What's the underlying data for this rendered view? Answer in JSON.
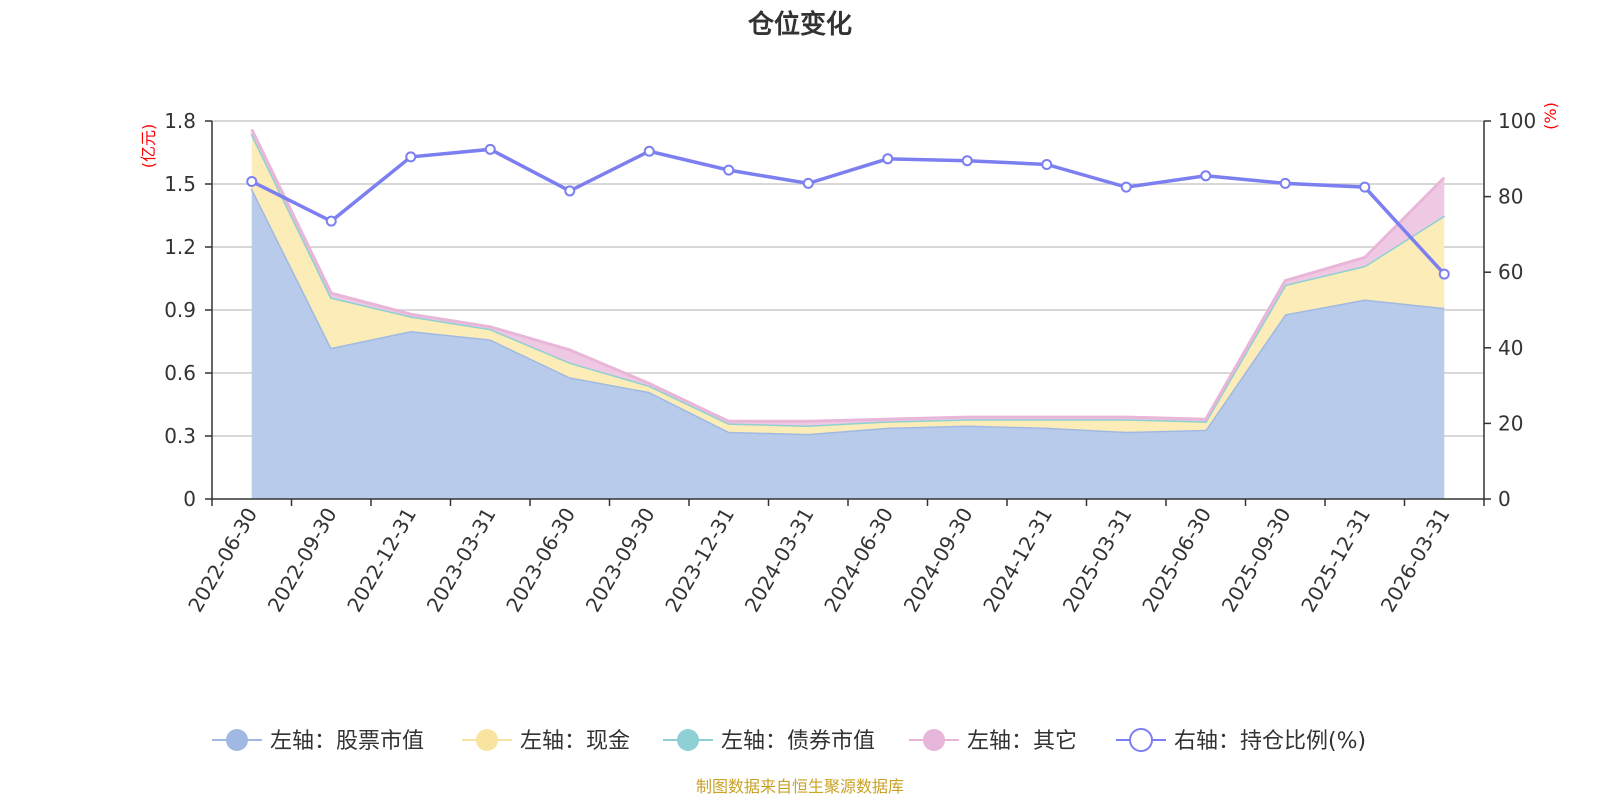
{
  "chart_data": {
    "type": "area",
    "title": "仓位变化",
    "left_unit": "(亿元)",
    "right_unit": "(%)",
    "categories": [
      "2022-06-30",
      "2022-09-30",
      "2022-12-31",
      "2023-03-31",
      "2023-06-30",
      "2023-09-30",
      "2023-12-31",
      "2024-03-31",
      "2024-06-30",
      "2024-09-30",
      "2024-12-31",
      "2025-03-31",
      "2025-06-30",
      "2025-09-30",
      "2025-12-31",
      "2026-03-31"
    ],
    "left_axis": {
      "min": 0,
      "max": 1.8,
      "ticks": [
        "0",
        "0.3",
        "0.6",
        "0.9",
        "1.2",
        "1.5",
        "1.8"
      ]
    },
    "right_axis": {
      "min": 0,
      "max": 100,
      "ticks": [
        "0",
        "20",
        "40",
        "60",
        "80",
        "100"
      ]
    },
    "stacked_series": [
      {
        "name": "左轴：股票市值",
        "color": "#a0b9e3",
        "fill": "#b8cbea",
        "values": [
          1.48,
          0.72,
          0.8,
          0.76,
          0.58,
          0.51,
          0.32,
          0.31,
          0.34,
          0.35,
          0.34,
          0.32,
          0.33,
          0.88,
          0.95,
          0.91
        ]
      },
      {
        "name": "左轴：现金",
        "color": "#f8e4a0",
        "fill": "#fbecb8",
        "values": [
          0.26,
          0.24,
          0.07,
          0.05,
          0.07,
          0.03,
          0.04,
          0.04,
          0.03,
          0.03,
          0.04,
          0.06,
          0.04,
          0.14,
          0.16,
          0.44
        ]
      },
      {
        "name": "左轴：债券市值",
        "color": "#8fd0d4",
        "fill": "#a8dadc",
        "values": [
          0,
          0,
          0,
          0,
          0,
          0,
          0,
          0,
          0,
          0,
          0,
          0,
          0,
          0,
          0,
          0
        ]
      },
      {
        "name": "左轴：其它",
        "color": "#e8b6d8",
        "fill": "#efc9e3",
        "values": [
          0.02,
          0.02,
          0.01,
          0.01,
          0.06,
          0.01,
          0.01,
          0.02,
          0.01,
          0.01,
          0.01,
          0.01,
          0.01,
          0.02,
          0.04,
          0.18
        ]
      }
    ],
    "line_series": {
      "name": "右轴：持仓比例(%)",
      "color": "#7b7ff0",
      "values": [
        84,
        73.5,
        90.5,
        92.5,
        81.5,
        92,
        87,
        83.5,
        90,
        89.5,
        88.5,
        82.5,
        85.5,
        83.5,
        82.5,
        59.5
      ]
    },
    "grid": true,
    "legend_position": "bottom"
  },
  "source_note": "制图数据来自恒生聚源数据库"
}
